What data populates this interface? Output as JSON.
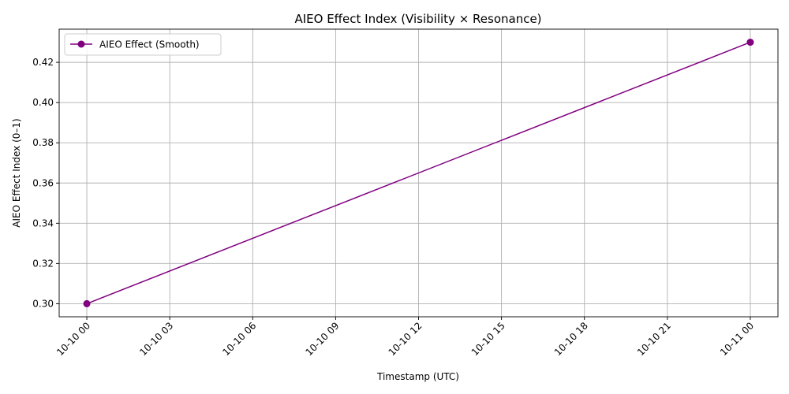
{
  "chart_data": {
    "type": "line",
    "title": "AIEO Effect Index (Visibility × Resonance)",
    "xlabel": "Timestamp (UTC)",
    "ylabel": "AIEO Effect Index (0–1)",
    "x_ticks": [
      "10-10 00",
      "10-10 03",
      "10-10 06",
      "10-10 09",
      "10-10 12",
      "10-10 15",
      "10-10 18",
      "10-10 21",
      "10-11 00"
    ],
    "x_range_hours": [
      -1,
      25
    ],
    "y_ticks": [
      "0.30",
      "0.32",
      "0.34",
      "0.36",
      "0.38",
      "0.40",
      "0.42"
    ],
    "ylim": [
      0.2935,
      0.4365
    ],
    "grid": true,
    "legend_position": "top-left",
    "series": [
      {
        "name": "AIEO Effect (Smooth)",
        "color": "#800080",
        "marker": "circle",
        "x_hours": [
          0,
          24
        ],
        "values": [
          0.3,
          0.43
        ]
      }
    ]
  }
}
